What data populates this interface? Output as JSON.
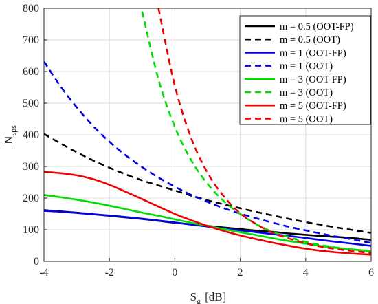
{
  "chart_data": {
    "type": "line",
    "xlabel_main": "S",
    "xlabel_sub": "g",
    "xlabel_unit": "[dB]",
    "ylabel_main": "N",
    "ylabel_sub": "sps",
    "xlim": [
      -4,
      6
    ],
    "ylim": [
      0,
      800
    ],
    "x_ticks": [
      -4,
      -2,
      0,
      2,
      4,
      6
    ],
    "y_ticks": [
      0,
      100,
      200,
      300,
      400,
      500,
      600,
      700,
      800
    ],
    "grid": true,
    "legend_position": "top-right",
    "x": [
      -4,
      -3.5,
      -3,
      -2.5,
      -2,
      -1.5,
      -1,
      -0.5,
      0,
      0.5,
      1,
      1.5,
      2,
      2.5,
      3,
      3.5,
      4,
      4.5,
      5,
      5.5,
      6
    ],
    "series": [
      {
        "name": "m = 0.5 (OOT-FP)",
        "color": "#000000",
        "dash": false,
        "values": [
          162,
          158,
          154,
          149,
          144,
          139,
          134,
          128,
          122,
          117,
          112,
          107,
          102,
          97,
          93,
          88,
          84,
          80,
          77,
          73,
          68
        ]
      },
      {
        "name": "m = 0.5 (OOT)",
        "color": "#000000",
        "dash": true,
        "values": [
          403,
          373,
          345,
          319,
          296,
          275,
          256,
          240,
          224,
          208,
          193,
          180,
          168,
          156,
          145,
          134,
          124,
          115,
          106,
          98,
          90
        ]
      },
      {
        "name": "m = 1 (OOT-FP)",
        "color": "#0000ee",
        "dash": false,
        "values": [
          160,
          157,
          153,
          149,
          145,
          140,
          135,
          129,
          123,
          116,
          110,
          104,
          98,
          92,
          86,
          80,
          74,
          67,
          61,
          55,
          49
        ]
      },
      {
        "name": "m = 1 (OOT)",
        "color": "#0000ee",
        "dash": true,
        "values": [
          632,
          554,
          487,
          428,
          378,
          335,
          298,
          265,
          236,
          210,
          188,
          168,
          151,
          136,
          122,
          109,
          98,
          87,
          77,
          68,
          58
        ]
      },
      {
        "name": "m = 3 (OOT-FP)",
        "color": "#00dd00",
        "dash": false,
        "values": [
          210,
          203,
          195,
          186,
          176,
          165,
          154,
          144,
          133,
          122,
          112,
          102,
          92,
          83,
          73,
          64,
          56,
          48,
          42,
          37,
          32
        ]
      },
      {
        "name": "m = 3 (OOT)",
        "color": "#00dd00",
        "dash": true,
        "values": [
          null,
          null,
          null,
          null,
          null,
          null,
          790,
          575,
          425,
          320,
          245,
          190,
          150,
          117,
          93,
          76,
          62,
          51,
          43,
          37,
          31
        ]
      },
      {
        "name": "m = 5 (OOT-FP)",
        "color": "#ee0000",
        "dash": false,
        "values": [
          283,
          279,
          272,
          260,
          242,
          220,
          197,
          173,
          150,
          130,
          112,
          96,
          82,
          70,
          59,
          49,
          40,
          33,
          28,
          24,
          21
        ]
      },
      {
        "name": "m = 5 (OOT)",
        "color": "#ee0000",
        "dash": true,
        "values": [
          null,
          null,
          null,
          null,
          null,
          null,
          null,
          800,
          555,
          390,
          280,
          205,
          152,
          117,
          90,
          72,
          57,
          46,
          38,
          32,
          26
        ]
      }
    ]
  }
}
